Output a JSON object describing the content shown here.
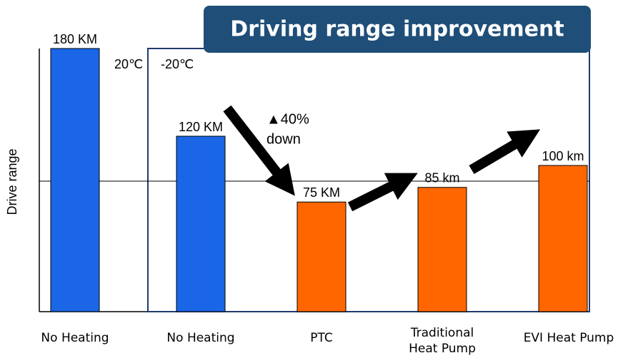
{
  "chart_data": {
    "type": "bar",
    "title": "Driving range improvement",
    "y_label": "Drive  range",
    "categories": [
      "No Heating",
      "No Heating",
      "PTC",
      "Traditional Heat Pump",
      "EVI Heat Pump"
    ],
    "values": [
      180,
      120,
      75,
      85,
      100
    ],
    "value_labels": [
      "180 KM",
      "120 KM",
      "75 KM",
      "85 km",
      "100 km"
    ],
    "colors": [
      "#1a66e6",
      "#1a66e6",
      "#ff6600",
      "#ff6600",
      "#ff6600"
    ],
    "ylim": [
      0,
      180
    ],
    "annotations": [
      "20℃",
      "-20℃",
      "▲40%",
      "down"
    ]
  }
}
